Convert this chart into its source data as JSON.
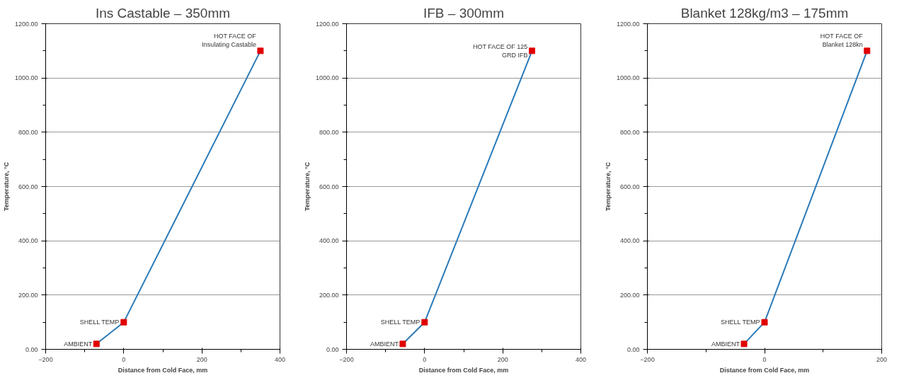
{
  "chart_data": [
    {
      "type": "line",
      "title": "Ins Castable – 350mm",
      "xlabel": "Distance from Cold Face, mm",
      "ylabel": "Temperature, °C",
      "x": [
        -70,
        0,
        350
      ],
      "series": [
        {
          "color": "#2a7ab8",
          "values": [
            20,
            100,
            1100
          ]
        }
      ],
      "colors": [
        "#e00000",
        "#e00000",
        "#e00000"
      ],
      "marker": "square",
      "line_style": "solid",
      "xlim": [
        -200,
        400
      ],
      "xticks": [
        -200,
        0,
        200,
        400
      ],
      "ylim": [
        0,
        1200
      ],
      "yticks": [
        {
          "value": 0,
          "label": "0.00"
        },
        {
          "value": 200,
          "label": "200.00"
        },
        {
          "value": 400,
          "label": "400.00"
        },
        {
          "value": 600,
          "label": "600.00"
        },
        {
          "value": 800,
          "label": "800.00"
        },
        {
          "value": 1000,
          "label": "1000.00"
        },
        {
          "value": 1200,
          "label": "1200.00"
        }
      ],
      "grid": "y",
      "annotations": [
        {
          "text": "AMBIENT",
          "x": -70,
          "y": 20
        },
        {
          "text": "SHELL TEMP",
          "x": 0,
          "y": 100
        },
        {
          "text": "HOT FACE OF\nInsulating Castable",
          "x": 350,
          "y": 1100
        }
      ]
    },
    {
      "type": "line",
      "title": "IFB – 300mm",
      "xlabel": "Distance from Cold Face, mm",
      "ylabel": "Temperature, °C",
      "x": [
        -56,
        0,
        275
      ],
      "series": [
        {
          "color": "#2a7ab8",
          "values": [
            20,
            100,
            1100
          ]
        }
      ],
      "colors": [
        "#e00000",
        "#e00000",
        "#e00000"
      ],
      "marker": "square",
      "line_style": "solid",
      "xlim": [
        -200,
        400
      ],
      "xticks": [
        -200,
        0,
        200,
        400
      ],
      "ylim": [
        0,
        1200
      ],
      "yticks": [
        {
          "value": 0,
          "label": "0.00"
        },
        {
          "value": 200,
          "label": "200.00"
        },
        {
          "value": 400,
          "label": "400.00"
        },
        {
          "value": 600,
          "label": "600.00"
        },
        {
          "value": 800,
          "label": "800.00"
        },
        {
          "value": 1000,
          "label": "1000.00"
        },
        {
          "value": 1200,
          "label": "1200.00"
        }
      ],
      "grid": "y",
      "annotations": [
        {
          "text": "AMBIENT",
          "x": -56,
          "y": 20
        },
        {
          "text": "SHELL TEMP",
          "x": 0,
          "y": 100
        },
        {
          "text": "HOT FACE OF 125\nGRD IFB",
          "x": 275,
          "y": 1100
        }
      ]
    },
    {
      "type": "line",
      "title": "Blanket 128kg/m3 – 175mm",
      "xlabel": "Distance from Cold Face, mm",
      "ylabel": "Temperature, °C",
      "x": [
        -35,
        0,
        175
      ],
      "series": [
        {
          "color": "#2a7ab8",
          "values": [
            20,
            100,
            1100
          ]
        }
      ],
      "colors": [
        "#e00000",
        "#e00000",
        "#e00000"
      ],
      "marker": "square",
      "line_style": "solid",
      "xlim": [
        -200,
        200
      ],
      "xticks": [
        -200,
        0,
        200
      ],
      "ylim": [
        0,
        1200
      ],
      "yticks": [
        {
          "value": 0,
          "label": "0.00"
        },
        {
          "value": 200,
          "label": "200.00"
        },
        {
          "value": 400,
          "label": "400.00"
        },
        {
          "value": 600,
          "label": "600.00"
        },
        {
          "value": 800,
          "label": "800.00"
        },
        {
          "value": 1000,
          "label": "1000.00"
        },
        {
          "value": 1200,
          "label": "1200.00"
        }
      ],
      "grid": "y",
      "annotations": [
        {
          "text": "AMBIENT",
          "x": -35,
          "y": 20
        },
        {
          "text": "SHELL TEMP",
          "x": 0,
          "y": 100
        },
        {
          "text": "HOT FACE OF\nBlanket 128kn",
          "x": 175,
          "y": 1100
        }
      ]
    }
  ]
}
